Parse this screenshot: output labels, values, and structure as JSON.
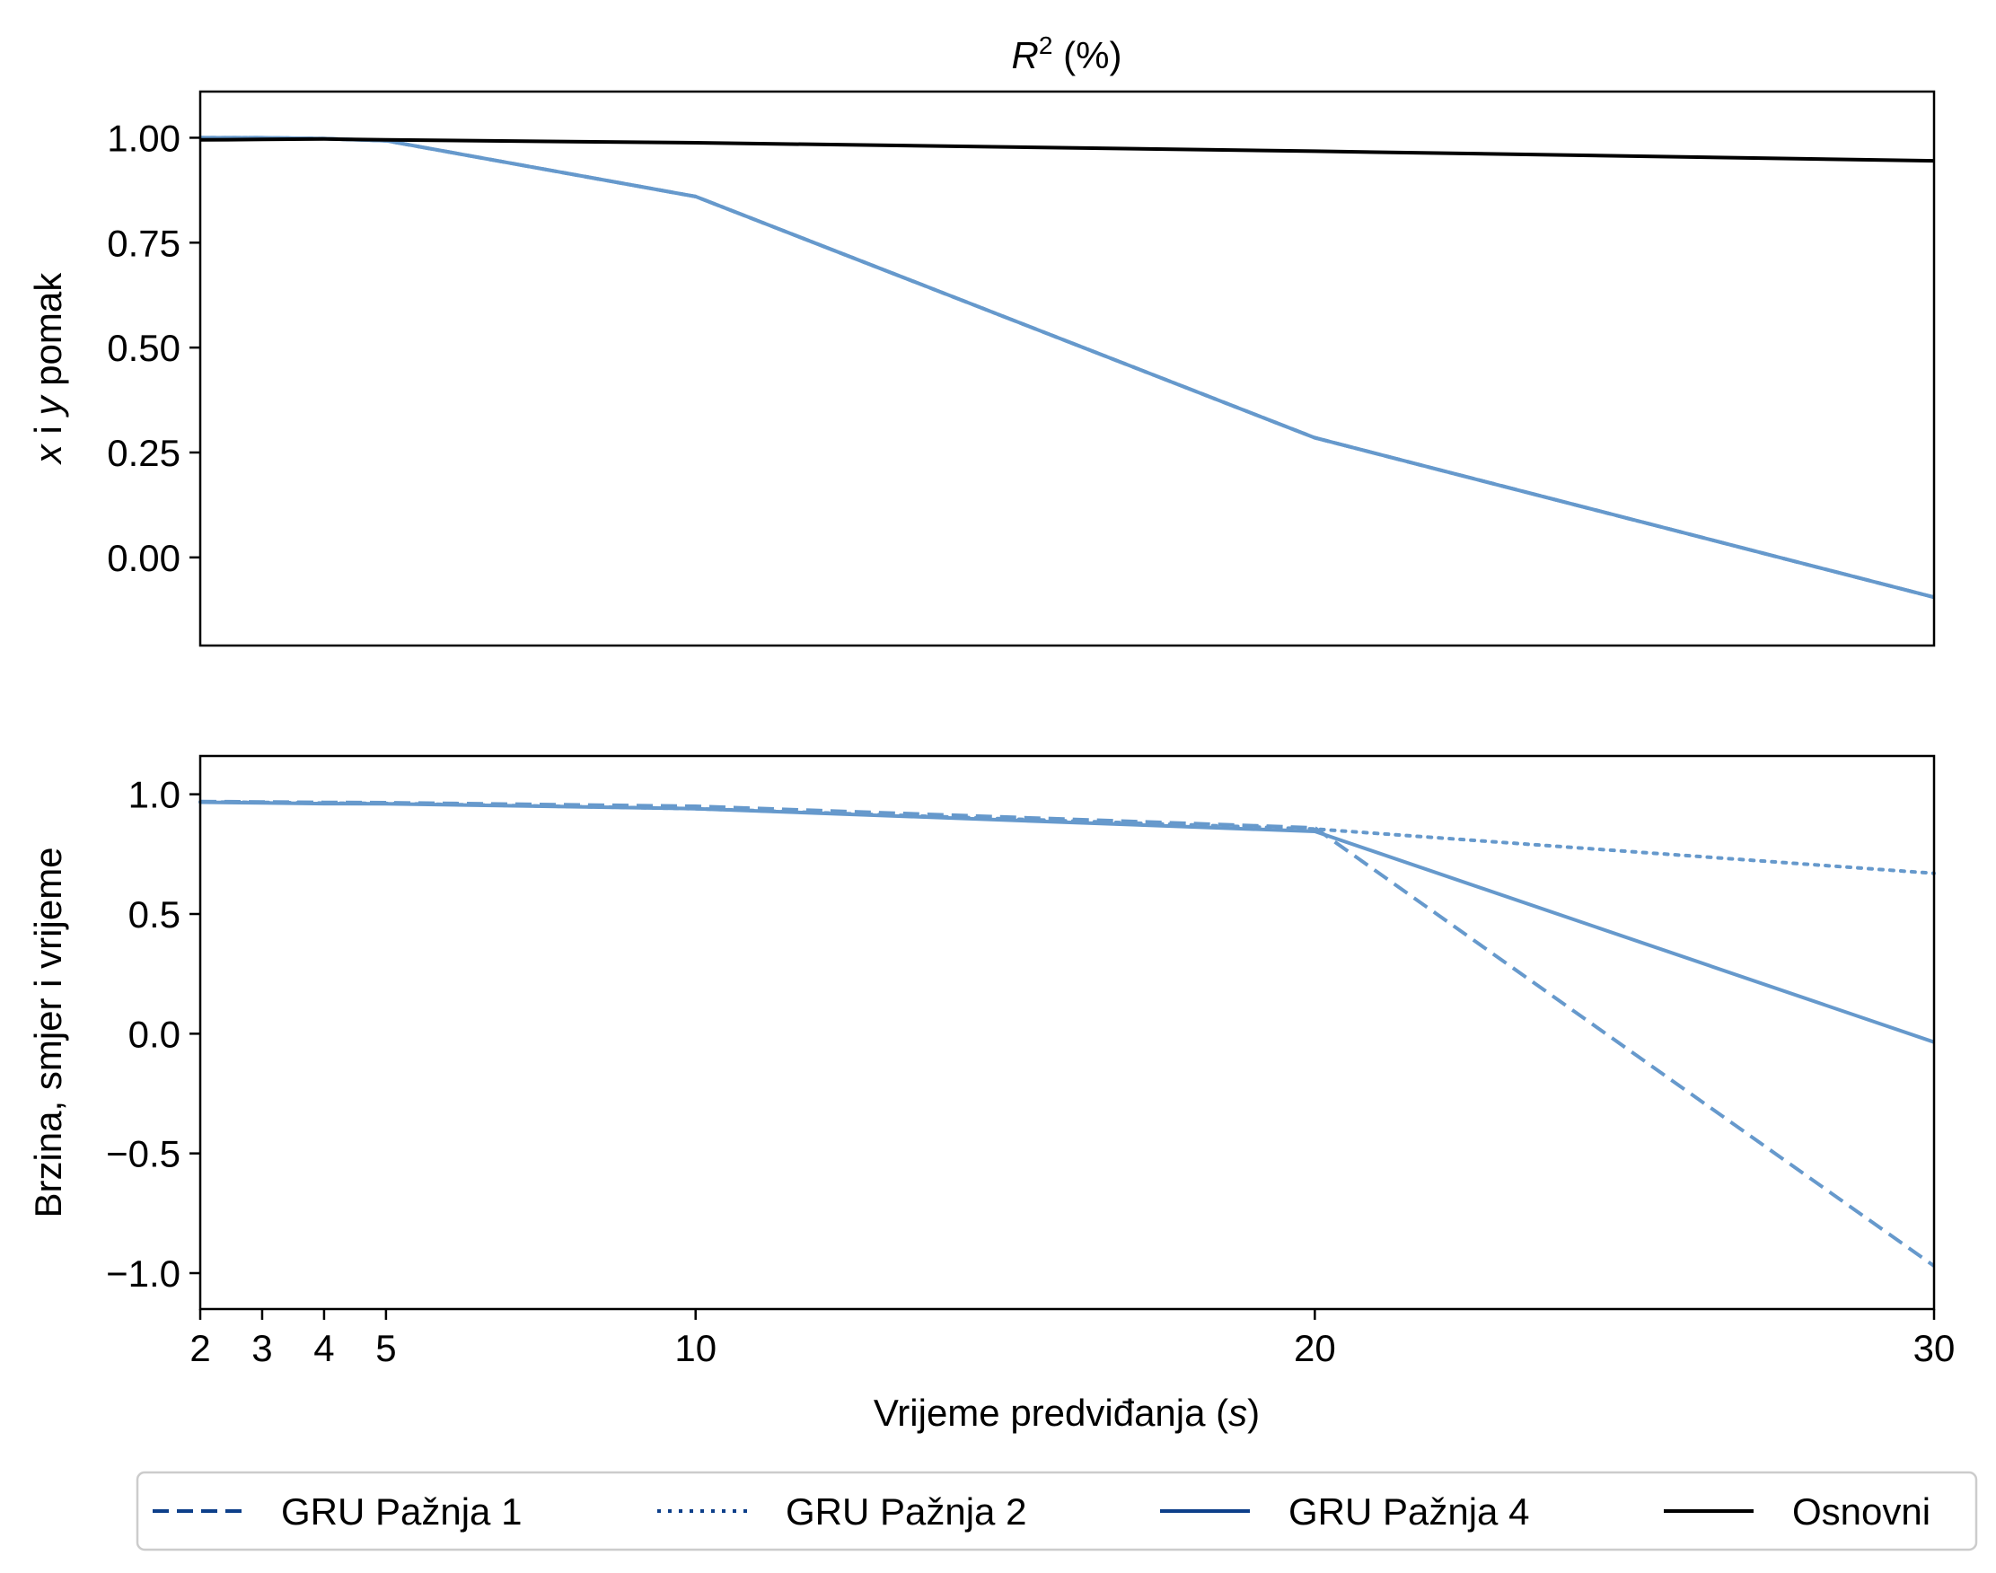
{
  "chart_data": {
    "type": "line",
    "title": "R² (%)",
    "xlabel": "Vrijeme predviđanja (s)",
    "x": [
      2,
      3,
      4,
      5,
      10,
      20,
      30
    ],
    "xticks": [
      "2",
      "3",
      "4",
      "5",
      "10",
      "20",
      "30"
    ],
    "xlim": [
      2,
      30
    ],
    "legend": {
      "placement": "bottom",
      "entries": [
        {
          "name": "GRU Pažnja 1",
          "style": "dashed",
          "color": "#0d3f8a"
        },
        {
          "name": "GRU Pažnja 2",
          "style": "dotted",
          "color": "#0d3f8a"
        },
        {
          "name": "GRU Pažnja 4",
          "style": "solid",
          "color": "#0d3f8a"
        },
        {
          "name": "Osnovni",
          "style": "solid",
          "color": "#000000"
        }
      ]
    },
    "panels": [
      {
        "ylabel": "x i y pomak",
        "ylim": [
          -0.21,
          1.11
        ],
        "yticks": [
          1.0,
          0.75,
          0.5,
          0.25,
          0.0
        ],
        "ytick_labels": [
          "1.00",
          "0.75",
          "0.50",
          "0.25",
          "0.00"
        ],
        "series": [
          {
            "name": "GRU Pažnja 1",
            "style": "dashed",
            "color": "#6699cc",
            "values": [
              1.0,
              1.0,
              0.998,
              0.993,
              0.86,
              0.285,
              -0.095
            ]
          },
          {
            "name": "GRU Pažnja 2",
            "style": "dotted",
            "color": "#6699cc",
            "values": [
              1.0,
              1.0,
              0.998,
              0.993,
              0.86,
              0.285,
              -0.095
            ]
          },
          {
            "name": "GRU Pažnja 4",
            "style": "solid",
            "color": "#6699cc",
            "values": [
              1.0,
              1.0,
              0.998,
              0.993,
              0.86,
              0.285,
              -0.095
            ]
          },
          {
            "name": "Osnovni",
            "style": "solid",
            "color": "#000000",
            "values": [
              0.995,
              0.996,
              0.997,
              0.995,
              0.988,
              0.968,
              0.945
            ]
          }
        ]
      },
      {
        "ylabel": "Brzina, smjer i vrijeme",
        "ylim": [
          -1.15,
          1.16
        ],
        "yticks": [
          1.0,
          0.5,
          0.0,
          -0.5,
          -1.0
        ],
        "ytick_labels": [
          "1.0",
          "0.5",
          "0.0",
          "−0.5",
          "−1.0"
        ],
        "series": [
          {
            "name": "GRU Pažnja 1",
            "style": "dashed",
            "color": "#6699cc",
            "values": [
              0.97,
              0.968,
              0.966,
              0.965,
              0.95,
              0.86,
              -0.97
            ]
          },
          {
            "name": "GRU Pažnja 2",
            "style": "dotted",
            "color": "#6699cc",
            "values": [
              0.968,
              0.966,
              0.963,
              0.962,
              0.94,
              0.855,
              0.67
            ]
          },
          {
            "name": "GRU Pažnja 4",
            "style": "solid",
            "color": "#6699cc",
            "values": [
              0.967,
              0.964,
              0.961,
              0.96,
              0.94,
              0.845,
              -0.035
            ]
          }
        ]
      }
    ]
  }
}
